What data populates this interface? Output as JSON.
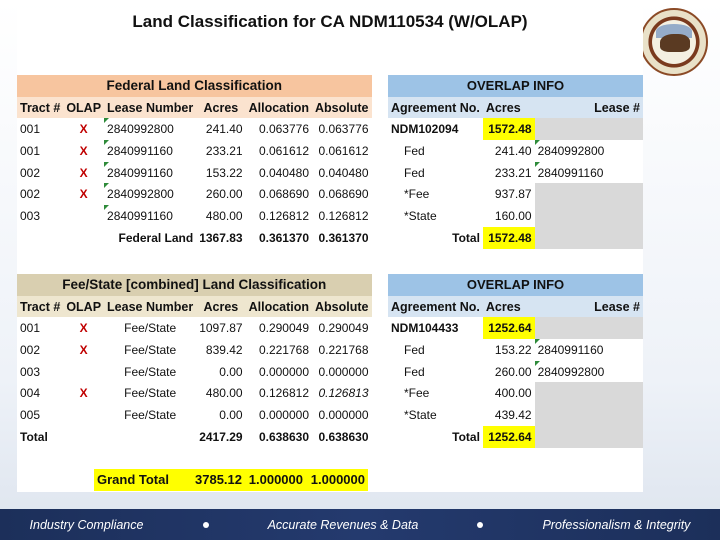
{
  "title": "Land Classification for CA NDM110534  (W/OLAP)",
  "federal": {
    "header": "Federal Land Classification",
    "columns": [
      "Tract #",
      "OLAP",
      "Lease Number",
      "Acres",
      "Allocation",
      "Absolute"
    ],
    "rows": [
      [
        "001",
        "X",
        "2840992800",
        "241.40",
        "0.063776",
        "0.063776"
      ],
      [
        "001",
        "X",
        "2840991160",
        "233.21",
        "0.061612",
        "0.061612"
      ],
      [
        "002",
        "X",
        "2840991160",
        "153.22",
        "0.040480",
        "0.040480"
      ],
      [
        "002",
        "X",
        "2840992800",
        "260.00",
        "0.068690",
        "0.068690"
      ],
      [
        "003",
        "",
        "2840991160",
        "480.00",
        "0.126812",
        "0.126812"
      ]
    ],
    "total": {
      "label": "Federal Land",
      "acres": "1367.83",
      "allocation": "0.361370",
      "absolute": "0.361370"
    }
  },
  "overlap1": {
    "header": "OVERLAP INFO",
    "columns": [
      "Agreement No.",
      "Acres",
      "Lease #"
    ],
    "rows": [
      [
        "NDM102094",
        "1572.48",
        ""
      ],
      [
        "Fed",
        "241.40",
        "2840992800"
      ],
      [
        "Fed",
        "233.21",
        "2840991160"
      ],
      [
        "*Fee",
        "937.87",
        ""
      ],
      [
        "*State",
        "160.00",
        ""
      ]
    ],
    "total": {
      "label": "Total",
      "acres": "1572.48"
    }
  },
  "fee": {
    "header": "Fee/State [combined] Land Classification",
    "columns": [
      "Tract #",
      "OLAP",
      "Lease Number",
      "Acres",
      "Allocation",
      "Absolute"
    ],
    "rows": [
      [
        "001",
        "X",
        "Fee/State",
        "1097.87",
        "0.290049",
        "0.290049"
      ],
      [
        "002",
        "X",
        "Fee/State",
        "839.42",
        "0.221768",
        "0.221768"
      ],
      [
        "003",
        "",
        "Fee/State",
        "0.00",
        "0.000000",
        "0.000000"
      ],
      [
        "004",
        "X",
        "Fee/State",
        "480.00",
        "0.126812",
        "0.126813"
      ],
      [
        "005",
        "",
        "Fee/State",
        "0.00",
        "0.000000",
        "0.000000"
      ]
    ],
    "total": {
      "label": "Total",
      "acres": "2417.29",
      "allocation": "0.638630",
      "absolute": "0.638630"
    }
  },
  "overlap2": {
    "header": "OVERLAP INFO",
    "columns": [
      "Agreement No.",
      "Acres",
      "Lease #"
    ],
    "rows": [
      [
        "NDM104433",
        "1252.64",
        ""
      ],
      [
        "Fed",
        "153.22",
        "2840991160"
      ],
      [
        "Fed",
        "260.00",
        "2840992800"
      ],
      [
        "*Fee",
        "400.00",
        ""
      ],
      [
        "*State",
        "439.42",
        ""
      ]
    ],
    "total": {
      "label": "Total",
      "acres": "1252.64"
    }
  },
  "grand_total": {
    "label": "Grand Total",
    "acres": "3785.12",
    "allocation": "1.000000",
    "absolute": "1.000000"
  },
  "footer": {
    "items": [
      "Industry Compliance",
      "Accurate Revenues & Data",
      "Professionalism & Integrity"
    ]
  },
  "colors": {
    "federal_header": "#f7c59f",
    "fee_header": "#d9cfb0",
    "overlap_header": "#9dc3e6",
    "highlight": "#ffff00",
    "olap_mark": "#c00000",
    "footer": "#1c2f5a"
  }
}
